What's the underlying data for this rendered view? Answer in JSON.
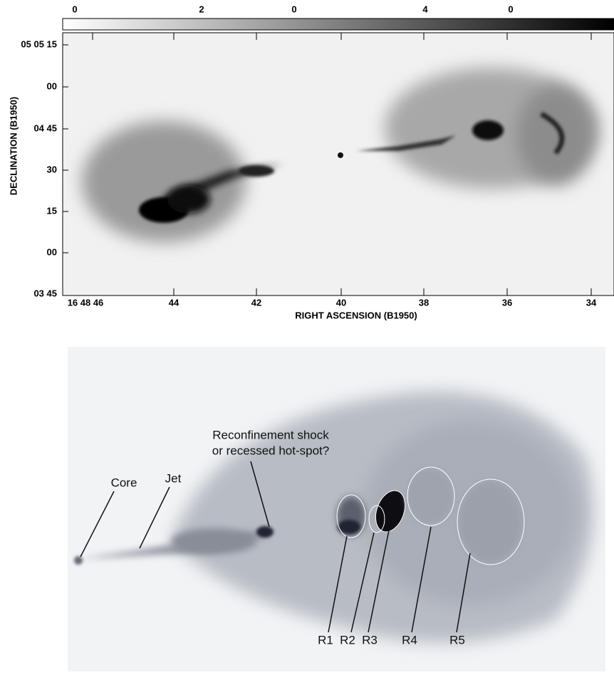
{
  "top_panel": {
    "colorbar_labels": [
      "0",
      "2",
      "0",
      "4",
      "0"
    ],
    "y_axis": {
      "title": "DECLINATION (B1950)",
      "ticks": [
        "05 05 15",
        "00",
        "04 45",
        "30",
        "15",
        "00",
        "03 45"
      ]
    },
    "x_axis": {
      "title": "RIGHT ASCENSION (B1950)",
      "ticks": [
        "16 48 46",
        "44",
        "42",
        "40",
        "38",
        "36",
        "34"
      ]
    }
  },
  "bottom_panel": {
    "annotations": {
      "reconfinement": [
        "Reconfinement shock",
        "or recessed hot-spot?"
      ],
      "core": "Core",
      "jet": "Jet"
    },
    "regions": [
      "R1",
      "R2",
      "R3",
      "R4",
      "R5"
    ]
  }
}
